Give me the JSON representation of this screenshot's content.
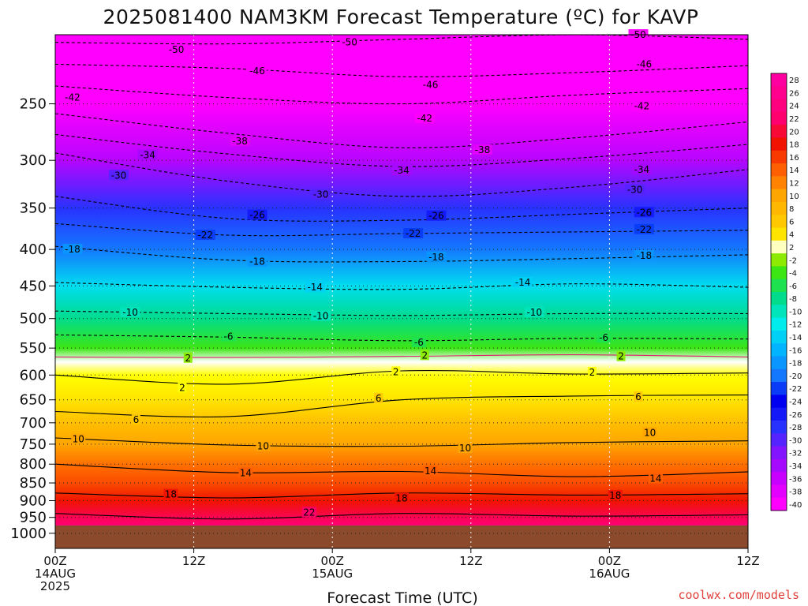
{
  "title": "2025081400 NAM3KM Forecast Temperature (ºC) for KAVP",
  "credit": "coolwx.com/models",
  "colors": {
    "ground": "#8b4a2b",
    "zero_line": "#e0206e",
    "contour": "#000000"
  },
  "chart_data": {
    "type": "heatmap",
    "title": "2025081400 NAM3KM Forecast Temperature (ºC) for KAVP",
    "xlabel": "Forecast Time (UTC)",
    "ylabel": "",
    "x_unit": "forecast hour",
    "xlim": [
      0,
      60
    ],
    "y_unit": "hPa",
    "ylim": [
      1050,
      200
    ],
    "y_scale": "log",
    "y_ticks": [
      250,
      300,
      350,
      400,
      450,
      500,
      550,
      600,
      650,
      700,
      750,
      800,
      850,
      900,
      950,
      1000
    ],
    "x_ticks": [
      {
        "hour": 0,
        "lines": [
          "00Z",
          "14AUG",
          "2025"
        ]
      },
      {
        "hour": 12,
        "lines": [
          "12Z"
        ]
      },
      {
        "hour": 24,
        "lines": [
          "00Z",
          "15AUG"
        ]
      },
      {
        "hour": 36,
        "lines": [
          "12Z"
        ]
      },
      {
        "hour": 48,
        "lines": [
          "00Z",
          "16AUG"
        ]
      },
      {
        "hour": 60,
        "lines": [
          "12Z"
        ]
      }
    ],
    "grid": true,
    "ground_level_hpa": 975,
    "temperature_profile_hour0": [
      {
        "p": 200,
        "t": -54
      },
      {
        "p": 250,
        "t": -44
      },
      {
        "p": 300,
        "t": -35
      },
      {
        "p": 350,
        "t": -28
      },
      {
        "p": 400,
        "t": -20
      },
      {
        "p": 450,
        "t": -13
      },
      {
        "p": 500,
        "t": -8
      },
      {
        "p": 550,
        "t": -4
      },
      {
        "p": 575,
        "t": 0
      },
      {
        "p": 600,
        "t": 2
      },
      {
        "p": 650,
        "t": 4
      },
      {
        "p": 700,
        "t": 7
      },
      {
        "p": 750,
        "t": 10
      },
      {
        "p": 800,
        "t": 13
      },
      {
        "p": 850,
        "t": 15
      },
      {
        "p": 900,
        "t": 18
      },
      {
        "p": 950,
        "t": 21
      },
      {
        "p": 975,
        "t": 23
      }
    ],
    "contours": [
      {
        "level": -50,
        "p": [
          205,
          206,
          203,
          200,
          203
        ],
        "labels": [
          {
            "hour": 10.5,
            "p": 210
          },
          {
            "hour": 25.5,
            "p": 205
          },
          {
            "hour": 50.5,
            "p": 200
          }
        ]
      },
      {
        "level": -46,
        "p": [
          220,
          223,
          229,
          226,
          221
        ],
        "labels": [
          {
            "hour": 17.5,
            "p": 225
          },
          {
            "hour": 32.5,
            "p": 235
          },
          {
            "hour": 51.0,
            "p": 220
          }
        ]
      },
      {
        "level": -42,
        "p": [
          236,
          245,
          250,
          243,
          238
        ],
        "labels": [
          {
            "hour": 1.5,
            "p": 245
          },
          {
            "hour": 32.0,
            "p": 262
          },
          {
            "hour": 50.8,
            "p": 252
          }
        ]
      },
      {
        "level": -38,
        "p": [
          258,
          275,
          288,
          279,
          265
        ],
        "labels": [
          {
            "hour": 16.0,
            "p": 282
          },
          {
            "hour": 37.0,
            "p": 290
          }
        ]
      },
      {
        "level": -34,
        "p": [
          276,
          294,
          306,
          298,
          285
        ],
        "labels": [
          {
            "hour": 8.0,
            "p": 295
          },
          {
            "hour": 30.0,
            "p": 310
          },
          {
            "hour": 50.8,
            "p": 309
          }
        ]
      },
      {
        "level": -30,
        "p": [
          293,
          321,
          337,
          327,
          309
        ],
        "labels": [
          {
            "hour": 5.5,
            "p": 315
          },
          {
            "hour": 23.0,
            "p": 335
          },
          {
            "hour": 50.2,
            "p": 330
          }
        ]
      },
      {
        "level": -26,
        "p": [
          337,
          362,
          364,
          357,
          350
        ],
        "labels": [
          {
            "hour": 17.5,
            "p": 358
          },
          {
            "hour": 33.0,
            "p": 359
          },
          {
            "hour": 51.0,
            "p": 355
          }
        ]
      },
      {
        "level": -22,
        "p": [
          368,
          382,
          380,
          378,
          376
        ],
        "labels": [
          {
            "hour": 13.0,
            "p": 382
          },
          {
            "hour": 31.0,
            "p": 380
          },
          {
            "hour": 51.0,
            "p": 375
          }
        ]
      },
      {
        "level": -18,
        "p": [
          396,
          414,
          416,
          412,
          407
        ],
        "labels": [
          {
            "hour": 1.5,
            "p": 400
          },
          {
            "hour": 17.5,
            "p": 416
          },
          {
            "hour": 33.0,
            "p": 410
          },
          {
            "hour": 51.0,
            "p": 408
          }
        ]
      },
      {
        "level": -14,
        "p": [
          445,
          452,
          455,
          447,
          452
        ],
        "labels": [
          {
            "hour": 22.5,
            "p": 452
          },
          {
            "hour": 40.5,
            "p": 445
          }
        ]
      },
      {
        "level": -10,
        "p": [
          488,
          492,
          495,
          492,
          492
        ],
        "labels": [
          {
            "hour": 6.5,
            "p": 490
          },
          {
            "hour": 23.0,
            "p": 496
          },
          {
            "hour": 41.5,
            "p": 490
          }
        ]
      },
      {
        "level": -6,
        "p": [
          527,
          531,
          537,
          533,
          534
        ],
        "labels": [
          {
            "hour": 15.0,
            "p": 530
          },
          {
            "hour": 31.5,
            "p": 540
          },
          {
            "hour": 47.5,
            "p": 532
          }
        ]
      },
      {
        "level": -2,
        "p": [
          566,
          567,
          565,
          562,
          566
        ],
        "labels": [
          {
            "hour": 11.5,
            "p": 568
          },
          {
            "hour": 32.0,
            "p": 563
          },
          {
            "hour": 49.0,
            "p": 565
          }
        ]
      },
      {
        "level": 2,
        "p": [
          600,
          618,
          592,
          598,
          596
        ],
        "labels": [
          {
            "hour": 11.0,
            "p": 625
          },
          {
            "hour": 29.5,
            "p": 594
          },
          {
            "hour": 46.5,
            "p": 595
          }
        ]
      },
      {
        "level": 6,
        "p": [
          675,
          686,
          650,
          642,
          640
        ],
        "labels": [
          {
            "hour": 7.0,
            "p": 693
          },
          {
            "hour": 28.0,
            "p": 647
          },
          {
            "hour": 50.5,
            "p": 644
          }
        ]
      },
      {
        "level": 10,
        "p": [
          735,
          752,
          755,
          746,
          742
        ],
        "labels": [
          {
            "hour": 2.0,
            "p": 738
          },
          {
            "hour": 18.0,
            "p": 755
          },
          {
            "hour": 35.5,
            "p": 760
          },
          {
            "hour": 51.5,
            "p": 723
          }
        ]
      },
      {
        "level": 14,
        "p": [
          800,
          822,
          819,
          833,
          820
        ],
        "labels": [
          {
            "hour": 16.5,
            "p": 823
          },
          {
            "hour": 32.5,
            "p": 818
          },
          {
            "hour": 52.0,
            "p": 838
          }
        ]
      },
      {
        "level": 18,
        "p": [
          878,
          892,
          878,
          884,
          880
        ],
        "labels": [
          {
            "hour": 10.0,
            "p": 882
          },
          {
            "hour": 30.0,
            "p": 893
          },
          {
            "hour": 48.5,
            "p": 885
          }
        ]
      },
      {
        "level": 22,
        "p": [
          938,
          955,
          938,
          946,
          942
        ],
        "labels": [
          {
            "hour": 22.0,
            "p": 935
          }
        ]
      }
    ],
    "colorbar": {
      "min": -40,
      "max": 28,
      "step": 2,
      "labels": [
        "28",
        "26",
        "24",
        "22",
        "20",
        "18",
        "16",
        "14",
        "12",
        "10",
        "8",
        "6",
        "4",
        "2",
        "-2",
        "-4",
        "-6",
        "-8",
        "-10",
        "-12",
        "-14",
        "-16",
        "-18",
        "-20",
        "-22",
        "-24",
        "-26",
        "-28",
        "-30",
        "-32",
        "-34",
        "-36",
        "-38",
        "-40"
      ]
    }
  }
}
